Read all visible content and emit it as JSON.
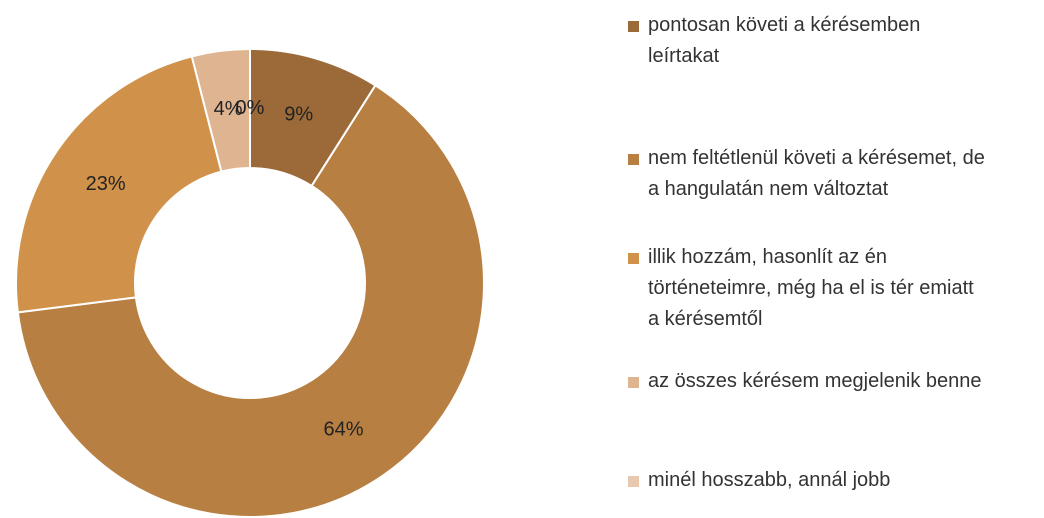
{
  "chart_data": {
    "type": "donut",
    "categories": [
      "pontosan követi a kérésemben leírtakat",
      "nem feltétlenül követi a kérésemet, de a hangulatán nem változtat",
      "illik hozzám, hasonlít az én történeteimre, még ha el is tér emiatt a kérésemtől",
      "az összes kérésem megjelenik benne",
      "minél hosszabb, annál jobb"
    ],
    "values": [
      9,
      64,
      23,
      4,
      0
    ],
    "value_labels": [
      "9%",
      "64%",
      "23%",
      "4%",
      "0%"
    ],
    "colors": [
      "#9c6a38",
      "#b87f42",
      "#d0924a",
      "#deb491",
      "#e8c9b0"
    ],
    "legend": "right"
  }
}
